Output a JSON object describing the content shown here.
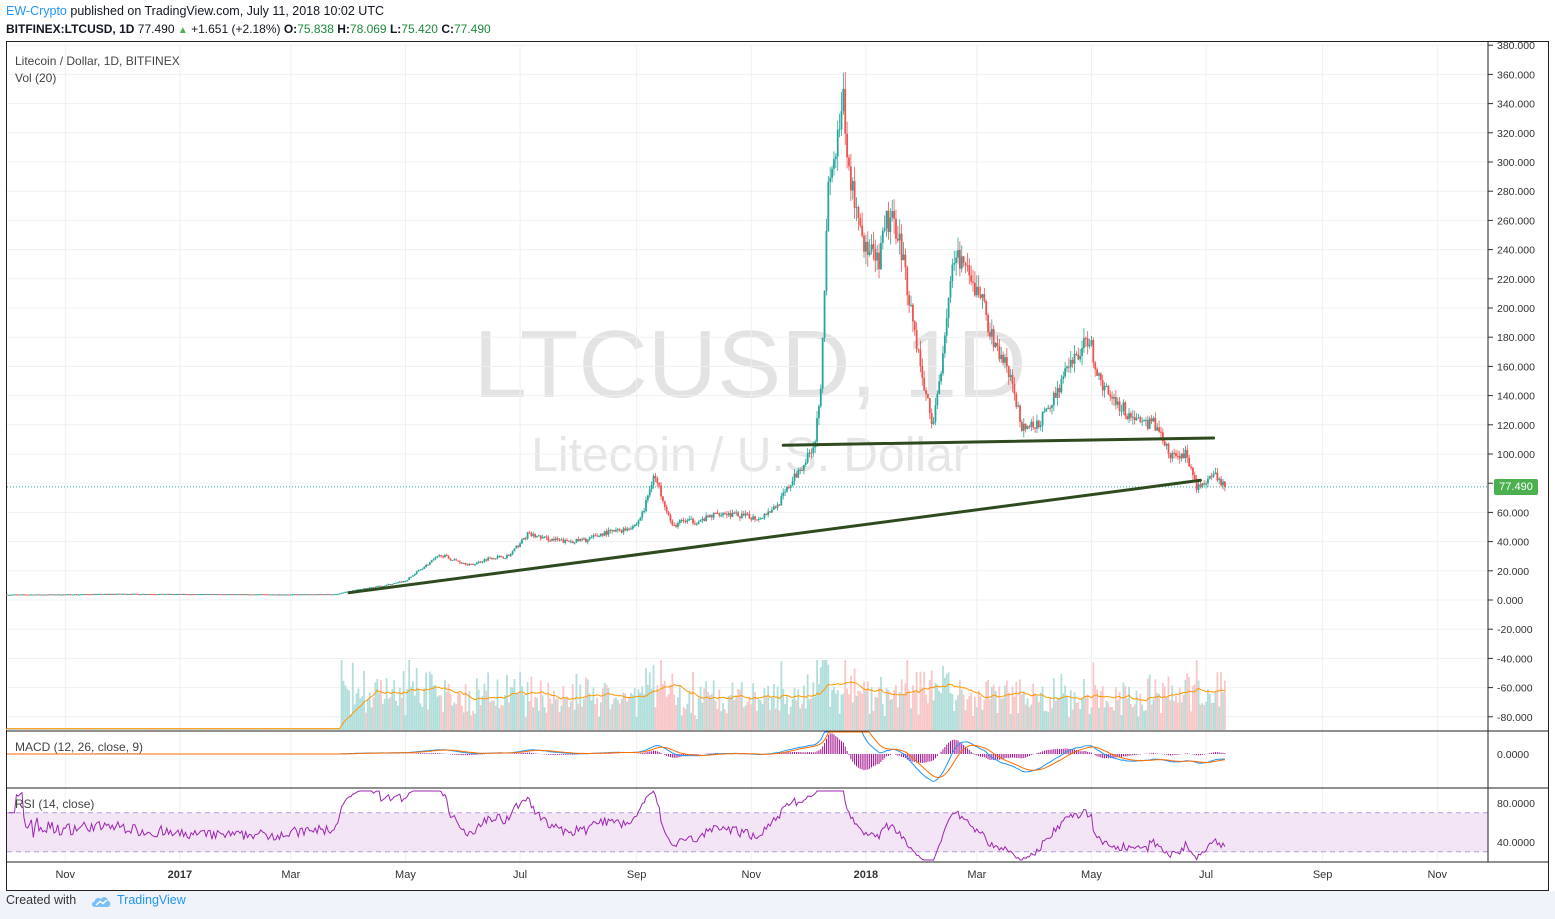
{
  "header": {
    "author": "EW-Crypto",
    "published": "published on TradingView.com, July 11, 2018 10:02 UTC",
    "symbol": "BITFINEX:LTCUSD, 1D",
    "last": "77.490",
    "change": "+1.651 (+2.18%)",
    "open_label": "O:",
    "open": "75.838",
    "high_label": "H:",
    "high": "78.069",
    "low_label": "L:",
    "low": "75.420",
    "close_label": "C:",
    "close": "77.490"
  },
  "legend": {
    "main": "Litecoin / Dollar, 1D, BITFINEX",
    "vol": "Vol (20)",
    "macd": "MACD (12, 26, close, 9)",
    "rsi": "RSI (14, close)"
  },
  "watermark": {
    "symbol": "LTCUSD, 1D",
    "name": "Litecoin / U.S. Dollar"
  },
  "price_tag": "77.490",
  "footer": {
    "created": "Created with",
    "brand": "TradingView"
  },
  "colors": {
    "up": "#26a69a",
    "down": "#ef5350",
    "trendline": "#2e4a1e",
    "macd": "#2196f3",
    "signal": "#ff6d00",
    "hist": "#a0148c",
    "rsi": "#9c27b0",
    "rsi_band": "#f3e5f5",
    "vol_ma": "#ff9800"
  },
  "chart_data": [
    {
      "type": "candlestick",
      "title": "Litecoin / Dollar, 1D, BITFINEX",
      "ylim": [
        -90,
        380
      ],
      "y_ticks": [
        "380.000",
        "360.000",
        "340.000",
        "320.000",
        "300.000",
        "280.000",
        "260.000",
        "240.000",
        "220.000",
        "200.000",
        "180.000",
        "160.000",
        "140.000",
        "120.000",
        "100.000",
        "80.000",
        "60.000",
        "40.000",
        "20.000",
        "0.000",
        "-20.000",
        "-40.000",
        "-60.000",
        "-80.000"
      ],
      "x_ticks": [
        "Nov",
        "2017",
        "Mar",
        "May",
        "Jul",
        "Sep",
        "Nov",
        "2018",
        "Mar",
        "May",
        "Jul",
        "Sep",
        "Nov"
      ],
      "x_dates": [
        "2016-11-01",
        "2017-01-01",
        "2017-03-01",
        "2017-05-01",
        "2017-07-01",
        "2017-09-01",
        "2017-11-01",
        "2018-01-01",
        "2018-03-01",
        "2018-05-01",
        "2018-07-01",
        "2018-09-01",
        "2018-11-01"
      ],
      "series": [
        {
          "x": [
            "2016-10-01",
            "2016-11-01",
            "2016-12-01",
            "2017-01-01",
            "2017-02-01",
            "2017-03-01",
            "2017-03-25",
            "2017-04-05",
            "2017-04-20",
            "2017-05-01",
            "2017-05-10",
            "2017-05-20",
            "2017-05-25",
            "2017-06-05",
            "2017-06-15",
            "2017-06-25",
            "2017-07-05",
            "2017-07-15",
            "2017-07-25",
            "2017-08-05",
            "2017-08-15",
            "2017-08-25",
            "2017-09-01",
            "2017-09-05",
            "2017-09-10",
            "2017-09-15",
            "2017-09-20",
            "2017-09-25",
            "2017-10-05",
            "2017-10-15",
            "2017-10-25",
            "2017-11-05",
            "2017-11-15",
            "2017-11-25",
            "2017-12-01",
            "2017-12-05",
            "2017-12-08",
            "2017-12-12",
            "2017-12-15",
            "2017-12-18",
            "2017-12-20",
            "2017-12-22",
            "2017-12-26",
            "2018-01-01",
            "2018-01-08",
            "2018-01-12",
            "2018-01-18",
            "2018-01-25",
            "2018-02-01",
            "2018-02-06",
            "2018-02-10",
            "2018-02-15",
            "2018-02-20",
            "2018-02-26",
            "2018-03-03",
            "2018-03-10",
            "2018-03-17",
            "2018-03-25",
            "2018-04-01",
            "2018-04-08",
            "2018-04-15",
            "2018-04-22",
            "2018-04-30",
            "2018-05-05",
            "2018-05-12",
            "2018-05-20",
            "2018-05-28",
            "2018-06-05",
            "2018-06-12",
            "2018-06-20",
            "2018-06-26",
            "2018-07-01",
            "2018-07-06",
            "2018-07-11"
          ],
          "y": [
            3.7,
            3.8,
            4.2,
            4.0,
            3.9,
            3.8,
            4.0,
            7,
            10,
            13,
            22,
            31,
            28,
            24,
            29,
            30,
            45,
            42,
            40,
            41,
            46,
            48,
            52,
            62,
            86,
            70,
            50,
            54,
            54,
            60,
            58,
            56,
            65,
            86,
            98,
            110,
            150,
            280,
            300,
            320,
            340,
            300,
            275,
            240,
            230,
            260,
            255,
            200,
            145,
            120,
            160,
            220,
            235,
            215,
            210,
            175,
            160,
            120,
            118,
            130,
            150,
            165,
            180,
            150,
            140,
            128,
            122,
            120,
            98,
            100,
            78,
            80,
            85,
            77.49
          ]
        }
      ],
      "levels": {
        "last": 77.49
      },
      "trendlines": [
        {
          "from": [
            "2017-04-01",
            5
          ],
          "to": [
            "2018-06-28",
            82
          ]
        },
        {
          "from": [
            "2017-11-18",
            106
          ],
          "to": [
            "2018-07-05",
            111
          ]
        }
      ]
    },
    {
      "type": "bar",
      "title": "Vol (20)",
      "ylabel": ""
    },
    {
      "type": "line",
      "title": "MACD (12, 26, close, 9)",
      "y_ticks": [
        "0.0000"
      ]
    },
    {
      "type": "line",
      "title": "RSI (14, close)",
      "y_ticks": [
        "80.0000",
        "40.0000"
      ],
      "bands": [
        30,
        70
      ]
    }
  ]
}
